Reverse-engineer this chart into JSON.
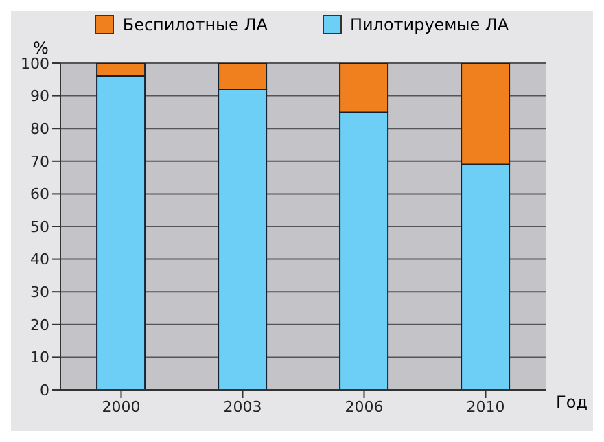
{
  "chart_data": {
    "type": "bar",
    "stacked": true,
    "categories": [
      "2000",
      "2003",
      "2006",
      "2010"
    ],
    "series": [
      {
        "name": "Пилотируемые ЛА",
        "color": "#6dcff6",
        "values": [
          96,
          92,
          85,
          69
        ]
      },
      {
        "name": "Беспилотные ЛА",
        "color": "#f07f1e",
        "values": [
          4,
          8,
          15,
          31
        ]
      }
    ],
    "xlabel": "Год",
    "ylabel": "%",
    "ylim": [
      0,
      100
    ],
    "yticks": [
      0,
      10,
      20,
      30,
      40,
      50,
      60,
      70,
      80,
      90,
      100
    ],
    "grid": "y",
    "legend": "top"
  }
}
